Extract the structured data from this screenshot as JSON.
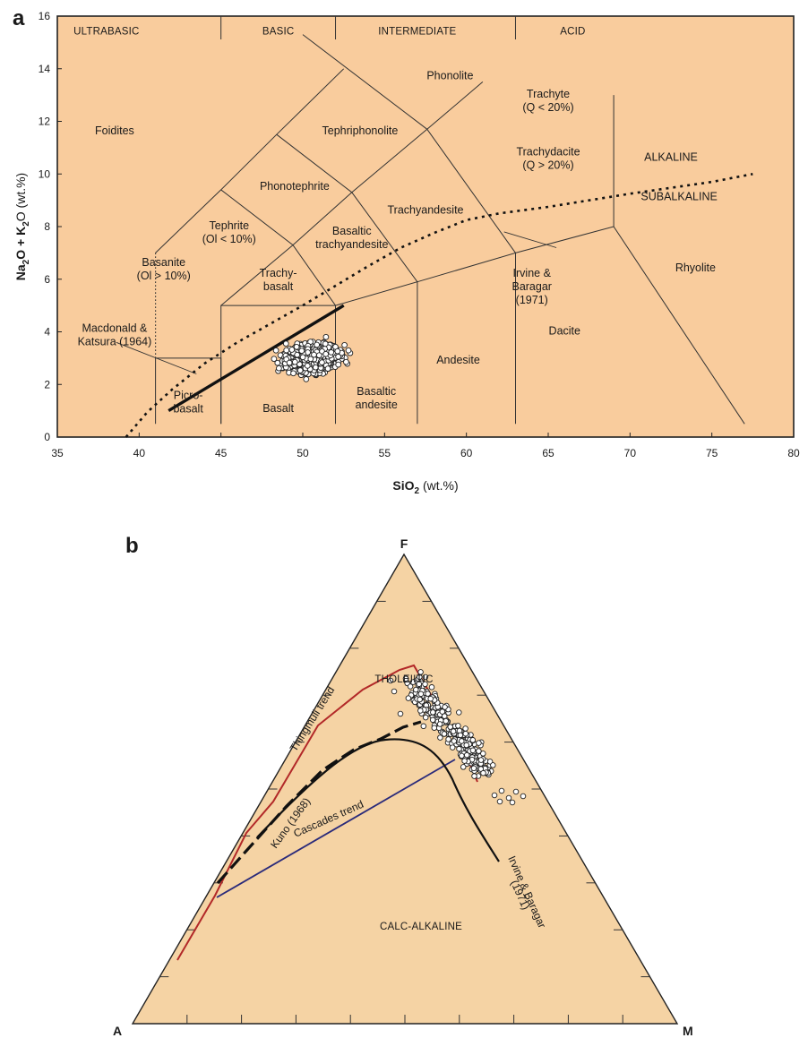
{
  "chart_data": [
    {
      "type": "scatter",
      "panel_label": "a",
      "xlabel_main": "SiO",
      "xlabel_sub": "2",
      "xlabel_unit": " (wt.%)",
      "ylabel_main": "Na",
      "ylabel_sub1": "2",
      "ylabel_mid": "O + K",
      "ylabel_sub2": "2",
      "ylabel_end": "O (wt.%)",
      "xlim": [
        35,
        80
      ],
      "ylim": [
        0,
        16
      ],
      "x_ticks": [
        "35",
        "40",
        "45",
        "50",
        "55",
        "60",
        "65",
        "70",
        "75",
        "80"
      ],
      "y_ticks": [
        "0",
        "2",
        "4",
        "6",
        "8",
        "10",
        "12",
        "14",
        "16"
      ],
      "background": "#f9cc9d",
      "classes": [
        {
          "name": "ULTRABASIC",
          "x": 38,
          "y": 15.3
        },
        {
          "name": "BASIC",
          "x": 48.5,
          "y": 15.3
        },
        {
          "name": "INTERMEDIATE",
          "x": 57,
          "y": 15.3
        },
        {
          "name": "ACID",
          "x": 66.5,
          "y": 15.3
        }
      ],
      "class_dividers": [
        45,
        52,
        63
      ],
      "fields": [
        {
          "lines": [
            "Foidites"
          ],
          "x": 38.5,
          "y": 11.5
        },
        {
          "lines": [
            "Phonolite"
          ],
          "x": 59,
          "y": 13.6
        },
        {
          "lines": [
            "Tephriphonolite"
          ],
          "x": 53.5,
          "y": 11.5
        },
        {
          "lines": [
            "Phonotephrite"
          ],
          "x": 49.5,
          "y": 9.4
        },
        {
          "lines": [
            "Trachyte",
            "(Q < 20%)"
          ],
          "x": 65,
          "y": 12.9
        },
        {
          "lines": [
            "Trachydacite",
            "(Q > 20%)"
          ],
          "x": 65,
          "y": 10.7
        },
        {
          "lines": [
            "Trachyandesite"
          ],
          "x": 57.5,
          "y": 8.5
        },
        {
          "lines": [
            "Tephrite",
            "(Ol < 10%)"
          ],
          "x": 45.5,
          "y": 7.9
        },
        {
          "lines": [
            "Basaltic",
            "trachyandesite"
          ],
          "x": 53,
          "y": 7.7
        },
        {
          "lines": [
            "Basanite",
            "(Ol > 10%)"
          ],
          "x": 41.5,
          "y": 6.5
        },
        {
          "lines": [
            "Trachy-",
            "basalt"
          ],
          "x": 48.5,
          "y": 6.1
        },
        {
          "lines": [
            "Andesite"
          ],
          "x": 59.5,
          "y": 2.8
        },
        {
          "lines": [
            "Dacite"
          ],
          "x": 66,
          "y": 3.9
        },
        {
          "lines": [
            "Rhyolite"
          ],
          "x": 74,
          "y": 6.3
        },
        {
          "lines": [
            "Picro-",
            "basalt"
          ],
          "x": 43,
          "y": 1.45
        },
        {
          "lines": [
            "Basalt"
          ],
          "x": 48.5,
          "y": 0.95
        },
        {
          "lines": [
            "Basaltic",
            "andesite"
          ],
          "x": 54.5,
          "y": 1.6
        },
        {
          "lines": [
            "Irvine &",
            "Baragar",
            "(1971)"
          ],
          "x": 64,
          "y": 6.1
        },
        {
          "lines": [
            "Macdonald &",
            "Katsura (1964)"
          ],
          "x": 38.5,
          "y": 4.0
        },
        {
          "lines": [
            "ALKALINE"
          ],
          "x": 72.5,
          "y": 10.5
        },
        {
          "lines": [
            "SUBALKALINE"
          ],
          "x": 73,
          "y": 9.0
        }
      ],
      "boundaries": [
        [
          [
            41,
            0.5
          ],
          [
            41,
            3
          ],
          [
            45,
            3
          ],
          [
            45,
            0.5
          ]
        ],
        [
          [
            45,
            0.5
          ],
          [
            45,
            5
          ],
          [
            52,
            5
          ],
          [
            52,
            0.5
          ]
        ],
        [
          [
            52,
            5
          ],
          [
            57,
            5.9
          ],
          [
            57,
            0.5
          ]
        ],
        [
          [
            57,
            5.9
          ],
          [
            63,
            7
          ],
          [
            63,
            0.5
          ]
        ],
        [
          [
            63,
            7
          ],
          [
            69,
            8
          ],
          [
            69,
            13
          ]
        ],
        [
          [
            69,
            8
          ],
          [
            77,
            0.5
          ]
        ],
        [
          [
            45,
            5
          ],
          [
            49.4,
            7.3
          ],
          [
            53,
            9.3
          ],
          [
            57.6,
            11.7
          ],
          [
            61,
            13.5
          ]
        ],
        [
          [
            52,
            5
          ],
          [
            49.4,
            7.3
          ],
          [
            45,
            9.4
          ],
          [
            48.4,
            11.5
          ],
          [
            52.5,
            14
          ]
        ],
        [
          [
            53,
            9.3
          ],
          [
            48.4,
            11.5
          ]
        ],
        [
          [
            57.6,
            11.7
          ],
          [
            50,
            15.3
          ]
        ],
        [
          [
            57,
            5.9
          ],
          [
            53,
            9.3
          ]
        ],
        [
          [
            63,
            7
          ],
          [
            57.6,
            11.7
          ]
        ],
        [
          [
            41,
            7
          ],
          [
            41,
            3
          ]
        ],
        [
          [
            41,
            7
          ],
          [
            45,
            9.4
          ]
        ]
      ],
      "dotted_boundaries": [
        [
          [
            41,
            3
          ],
          [
            41,
            7
          ]
        ]
      ],
      "alkaline_curve": [
        [
          39.2,
          0
        ],
        [
          40.5,
          0.95
        ],
        [
          42,
          1.8
        ],
        [
          44,
          2.8
        ],
        [
          46,
          3.6
        ],
        [
          48,
          4.3
        ],
        [
          50,
          5
        ],
        [
          52,
          5.75
        ],
        [
          54,
          6.5
        ],
        [
          56,
          7.2
        ],
        [
          58,
          7.75
        ],
        [
          60,
          8.25
        ],
        [
          62,
          8.5
        ],
        [
          65,
          8.75
        ],
        [
          70,
          9.25
        ],
        [
          75,
          9.7
        ],
        [
          77.5,
          10
        ]
      ],
      "macdonald_line": [
        [
          41.8,
          1.0
        ],
        [
          52.5,
          5
        ]
      ],
      "pointer_lines": [
        [
          [
            38.6,
            3.6
          ],
          [
            43.5,
            2.4
          ]
        ],
        [
          [
            62.3,
            7.8
          ],
          [
            65.5,
            7.2
          ]
        ]
      ],
      "points_count": 620,
      "points_region": {
        "x": [
          47,
          55
        ],
        "y": [
          1.7,
          5
        ]
      }
    },
    {
      "type": "ternary",
      "panel_label": "b",
      "vertices": {
        "top": "F",
        "left": "A",
        "right": "M"
      },
      "background": "#f5d3a4",
      "regions": [
        {
          "name": "THOLEIITIC",
          "pos": [
            0.35,
            0.17
          ]
        },
        {
          "name": "CALC-ALKALINE",
          "pos": [
            0.55,
            0.71
          ]
        }
      ],
      "trend_labels": [
        {
          "name": "Thingmuli trend",
          "color": "#b22828"
        },
        {
          "name": "Kuno (1968)",
          "color": "#111111"
        },
        {
          "name": "Cascades trend",
          "color": "#2a2a7a"
        },
        {
          "name": "Irvine & Baragar",
          "color": "#111111"
        },
        {
          "name": "(1971)",
          "color": "#111111"
        }
      ],
      "points_count": 320
    }
  ]
}
